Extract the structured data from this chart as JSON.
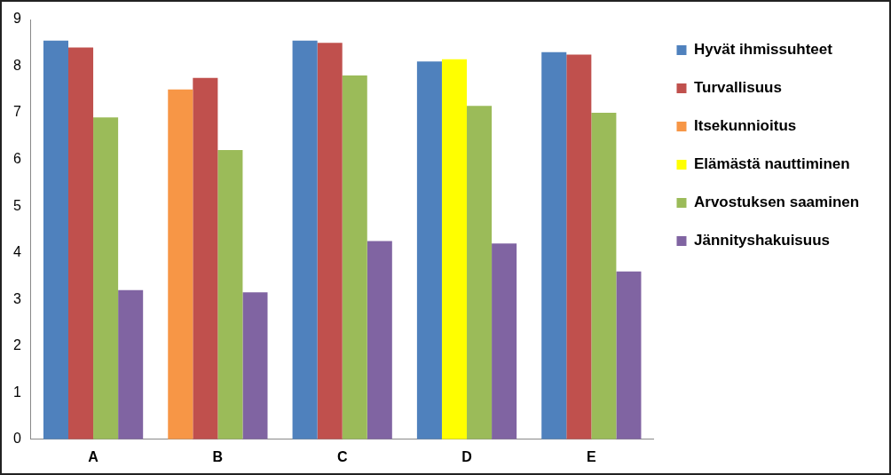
{
  "chart_data": {
    "type": "bar",
    "categories": [
      "A",
      "B",
      "C",
      "D",
      "E"
    ],
    "series": [
      {
        "name": "Hyvät ihmissuhteet",
        "color": "#4f81bd",
        "values": [
          8.55,
          null,
          8.55,
          8.1,
          8.3
        ]
      },
      {
        "name": "Turvallisuus",
        "color": "#c0504d",
        "values": [
          8.4,
          7.75,
          8.5,
          null,
          8.25
        ]
      },
      {
        "name": "Itsekunnioitus",
        "color": "#f79646",
        "values": [
          null,
          7.5,
          null,
          null,
          null
        ]
      },
      {
        "name": "Elämästä nauttiminen",
        "color": "#ffff00",
        "values": [
          null,
          null,
          null,
          8.15,
          null
        ]
      },
      {
        "name": "Arvostuksen saaminen",
        "color": "#9bbb59",
        "values": [
          6.9,
          6.2,
          7.8,
          7.15,
          7.0
        ]
      },
      {
        "name": "Jännityshakuisuus",
        "color": "#8064a2",
        "values": [
          3.2,
          3.15,
          4.25,
          4.2,
          3.6
        ]
      }
    ],
    "ylim": [
      0,
      9
    ],
    "yticks": [
      0,
      1,
      2,
      3,
      4,
      5,
      6,
      7,
      8,
      9
    ],
    "grid": false,
    "legend": "right"
  }
}
